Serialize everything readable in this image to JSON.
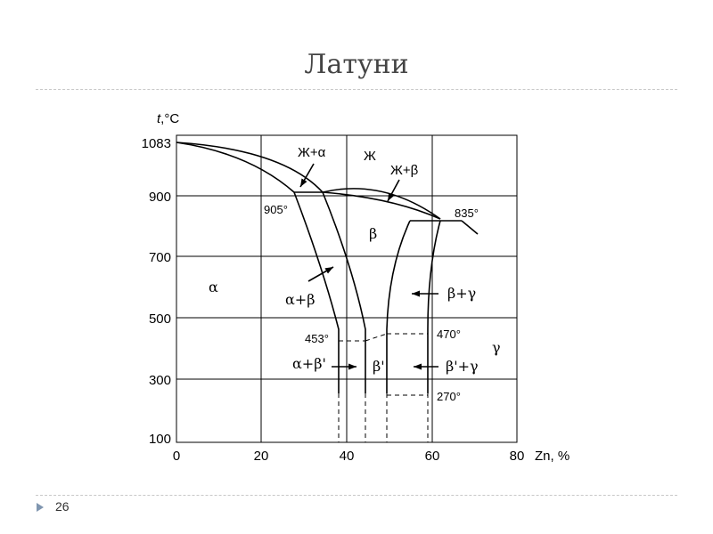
{
  "slide": {
    "title": "Латуни",
    "number": "26"
  },
  "diagram": {
    "y_axis_label_t": "t",
    "y_axis_label_unit": ",°C",
    "x_axis_label": "Zn, %",
    "x_ticks": [
      "0",
      "20",
      "40",
      "60",
      "80"
    ],
    "y_ticks": [
      "1083",
      "900",
      "700",
      "500",
      "300",
      "100"
    ],
    "regions": {
      "liquid": "Ж",
      "liquid_alpha": "Ж+α",
      "liquid_beta": "Ж+β",
      "alpha": "α",
      "beta": "β",
      "alpha_beta": "α+β",
      "beta_gamma": "β+γ",
      "alpha_beta_prime": "α+β'",
      "beta_prime": "β'",
      "beta_prime_gamma": "β'+γ",
      "gamma": "γ"
    },
    "temperatures": {
      "t905": "905°",
      "t835": "835°",
      "t453": "453°",
      "t470": "470°",
      "t270": "270°"
    }
  }
}
